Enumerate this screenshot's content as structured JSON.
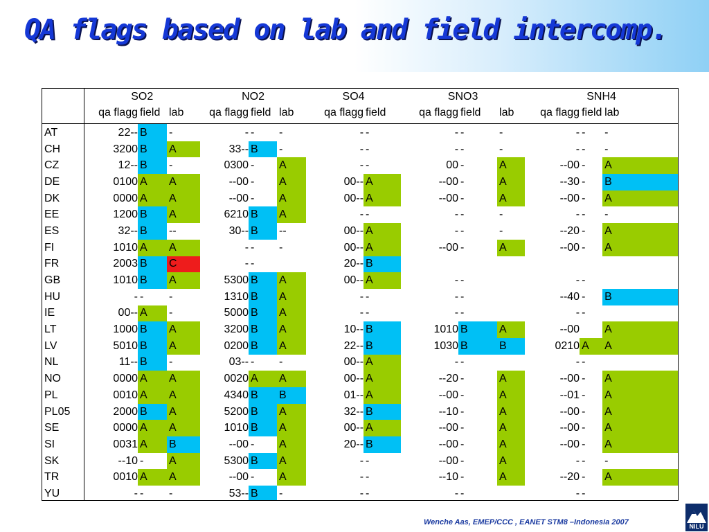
{
  "title": "QA flags based on lab and field intercomp.",
  "footer": "Wenche Aas, EMEP/CCC , EANET STM8 –Indonesia 2007",
  "logo_text": "NILU",
  "colors": {
    "A": "#99cc00",
    "B": "#00c0f5",
    "C": "#ee1c1c",
    "title": "#1538d6"
  },
  "groups": [
    {
      "label": "SO2",
      "span": 3
    },
    {
      "label": "NO2",
      "span": 3
    },
    {
      "label": "SO4",
      "span": 2
    },
    {
      "label": "SNO3",
      "span": 3
    },
    {
      "label": "SNH4",
      "span": 3
    }
  ],
  "subheaders": [
    "",
    "qa flagg",
    "field",
    "lab",
    "qa flagg",
    "field",
    "lab",
    "qa flagg",
    "field",
    "qa flagg",
    "field",
    "lab",
    "qa flagg",
    "field",
    "lab"
  ],
  "rows": [
    [
      "AT",
      "22--",
      "B",
      "-",
      "-",
      "-",
      "-",
      "-",
      "-",
      "-",
      "-",
      "-",
      "-",
      "-",
      "-"
    ],
    [
      "CH",
      "3200",
      "B",
      "A",
      "33--",
      "B",
      "-",
      "-",
      "-",
      "-",
      "-",
      "-",
      "-",
      "-",
      "-"
    ],
    [
      "CZ",
      "12--",
      "B",
      "-",
      "0300",
      "-",
      "A",
      "-",
      "-",
      "00",
      "-",
      "A",
      "--00",
      "-",
      "A"
    ],
    [
      "DE",
      "0100",
      "A",
      "A",
      "--00",
      "-",
      "A",
      "00--",
      "A",
      "--00",
      "-",
      "A",
      "--30",
      "-",
      "B"
    ],
    [
      "DK",
      "0000",
      "A",
      "A",
      "--00",
      "-",
      "A",
      "00--",
      "A",
      "--00",
      "-",
      "A",
      "--00",
      "-",
      "A"
    ],
    [
      "EE",
      "1200",
      "B",
      "A",
      "6210",
      "B",
      "A",
      "-",
      "-",
      "-",
      "-",
      "-",
      "-",
      "-",
      "-"
    ],
    [
      "ES",
      "32--",
      "B",
      "--",
      "30--",
      "B",
      "--",
      "00--",
      "A",
      "-",
      "-",
      "-",
      "--20",
      "-",
      "A"
    ],
    [
      "FI",
      "1010",
      "A",
      "A",
      "-",
      "-",
      "-",
      "00--",
      "A",
      "--00",
      "-",
      "A",
      "--00",
      "-",
      "A"
    ],
    [
      "FR",
      "2003",
      "B",
      "C",
      "-",
      "-",
      "",
      "20--",
      "B",
      "",
      "",
      "",
      "",
      "",
      ""
    ],
    [
      "GB",
      "1010",
      "B",
      "A",
      "5300",
      "B",
      "A",
      "00--",
      "A",
      "-",
      "-",
      "",
      "-",
      "-",
      ""
    ],
    [
      "HU",
      "-",
      "-",
      "-",
      "1310",
      "B",
      "A",
      "-",
      "-",
      "-",
      "-",
      "",
      "--40",
      "-",
      "B"
    ],
    [
      "IE",
      "00--",
      "A",
      "-",
      "5000",
      "B",
      "A",
      "-",
      "-",
      "-",
      "-",
      "",
      "-",
      "-",
      ""
    ],
    [
      "LT",
      "1000",
      "B",
      "A",
      "3200",
      "B",
      "A",
      "10--",
      "B",
      "1010",
      "B",
      "A",
      "--00",
      "",
      "A"
    ],
    [
      "LV",
      "5010",
      "B",
      "A",
      "0200",
      "B",
      "A",
      "22--",
      "B",
      "1030",
      "B",
      "B",
      "0210",
      "A",
      "A"
    ],
    [
      "NL",
      "11--",
      "B",
      "-",
      "03--",
      "-",
      "-",
      "00--",
      "A",
      "-",
      "-",
      "",
      "-",
      "-",
      ""
    ],
    [
      "NO",
      "0000",
      "A",
      "A",
      "0020",
      "A",
      "A",
      "00--",
      "A",
      "--20",
      "-",
      "A",
      "--00",
      "-",
      "A"
    ],
    [
      "PL",
      "0010",
      "A",
      "A",
      "4340",
      "B",
      "B",
      "01--",
      "A",
      "--00",
      "-",
      "A",
      "--01",
      "-",
      "A"
    ],
    [
      "PL05",
      "2000",
      "B",
      "A",
      "5200",
      "B",
      "A",
      "32--",
      "B",
      "--10",
      "-",
      "A",
      "--00",
      "-",
      "A"
    ],
    [
      "SE",
      "0000",
      "A",
      "A",
      "1010",
      "B",
      "A",
      "00--",
      "A",
      "--00",
      "-",
      "A",
      "--00",
      "-",
      "A"
    ],
    [
      "SI",
      "0031",
      "A",
      "B",
      "--00",
      "-",
      "A",
      "20--",
      "B",
      "--00",
      "-",
      "A",
      "--00",
      "-",
      "A"
    ],
    [
      "SK",
      "--10",
      "-",
      "A",
      "5300",
      "B",
      "A",
      "-",
      "-",
      "--00",
      "-",
      "A",
      "-",
      "-",
      "-"
    ],
    [
      "TR",
      "0010",
      "A",
      "A",
      "--00",
      "-",
      "A",
      "-",
      "-",
      "--10",
      "-",
      "A",
      "--20",
      "-",
      "A"
    ],
    [
      "YU",
      "-",
      "-",
      "-",
      "53--",
      "B",
      "-",
      "-",
      "-",
      "-",
      "-",
      "",
      "-",
      "-",
      ""
    ]
  ]
}
